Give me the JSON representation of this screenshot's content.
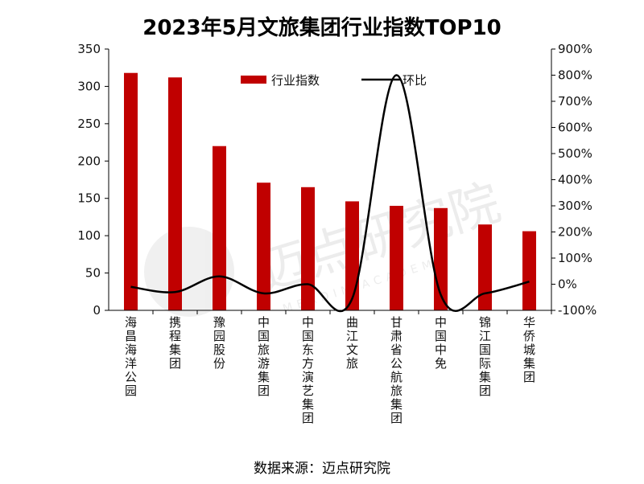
{
  "chart_data": {
    "type": "bar",
    "title": "2023年5月文旅集团行业指数TOP10",
    "categories": [
      "海昌海洋公园",
      "携程集团",
      "豫园股份",
      "中国旅游集团",
      "中国东方演艺集团",
      "曲江文旅",
      "甘肃省公航旅集团",
      "中国中免",
      "锦江国际集团",
      "华侨城集团"
    ],
    "series": [
      {
        "name": "行业指数",
        "axis": "left",
        "kind": "bar",
        "color": "#c00000",
        "values": [
          318,
          312,
          220,
          171,
          165,
          146,
          140,
          137,
          115,
          106
        ]
      },
      {
        "name": "环比",
        "axis": "right",
        "kind": "line",
        "color": "#000000",
        "values": [
          -10,
          -30,
          30,
          -35,
          0,
          -55,
          800,
          -40,
          -35,
          10
        ]
      }
    ],
    "y_left": {
      "min": 0,
      "max": 350,
      "step": 50,
      "tick_labels": [
        "0",
        "50",
        "100",
        "150",
        "200",
        "250",
        "300",
        "350"
      ]
    },
    "y_right": {
      "min": -100,
      "max": 900,
      "step": 100,
      "tick_labels": [
        "-100%",
        "0%",
        "100%",
        "200%",
        "300%",
        "400%",
        "500%",
        "600%",
        "700%",
        "800%",
        "900%"
      ]
    },
    "legend_position": "top-center",
    "grid": false
  },
  "watermark": {
    "text": "迈点研究院",
    "subtext": "MEADIN ACADEMY"
  },
  "source": "数据来源：迈点研究院"
}
